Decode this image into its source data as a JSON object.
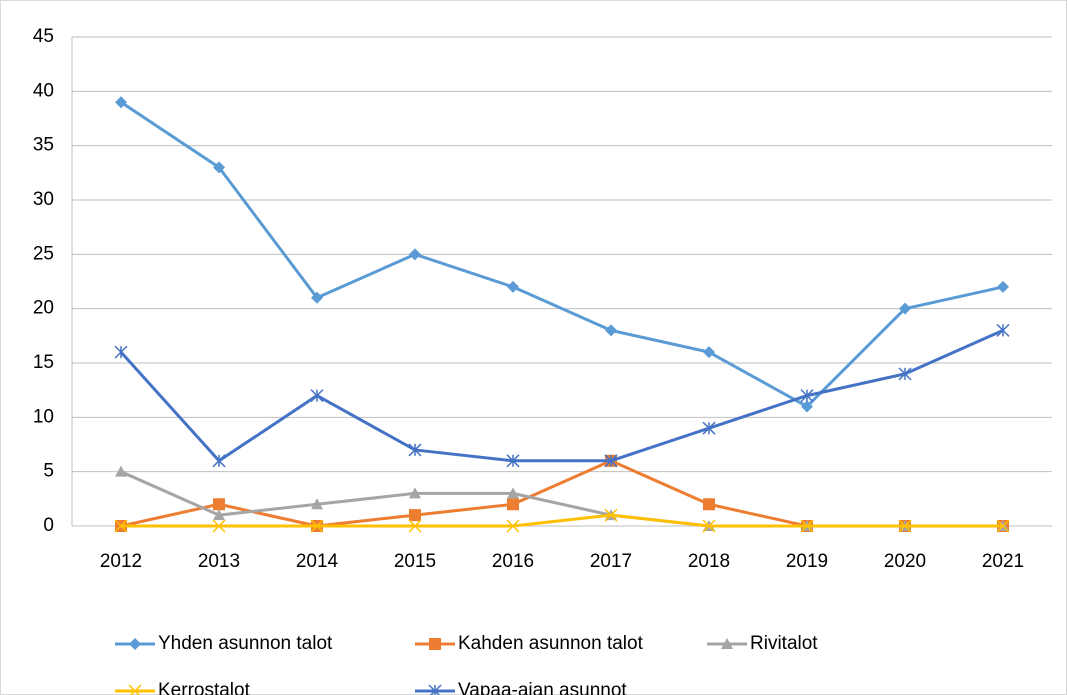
{
  "chart_data": {
    "type": "line",
    "categories": [
      "2012",
      "2013",
      "2014",
      "2015",
      "2016",
      "2017",
      "2018",
      "2019",
      "2020",
      "2021"
    ],
    "series": [
      {
        "name": "Yhden asunnon talot",
        "color": "#5b9bd5",
        "marker": "diamond",
        "values": [
          39,
          33,
          21,
          25,
          22,
          18,
          16,
          11,
          20,
          22
        ]
      },
      {
        "name": "Kahden asunnon talot",
        "color": "#ed7d31",
        "marker": "square",
        "values": [
          0,
          2,
          0,
          1,
          2,
          6,
          2,
          0,
          0,
          0
        ]
      },
      {
        "name": "Rivitalot",
        "color": "#a5a5a5",
        "marker": "triangle",
        "values": [
          5,
          1,
          2,
          3,
          3,
          1,
          0,
          0,
          0,
          0
        ]
      },
      {
        "name": "Kerrostalot",
        "color": "#ffc000",
        "marker": "x",
        "values": [
          0,
          0,
          0,
          0,
          0,
          1,
          0,
          0,
          0,
          0
        ]
      },
      {
        "name": "Vapaa-ajan asunnot",
        "color": "#4472c4",
        "marker": "star",
        "values": [
          16,
          6,
          12,
          7,
          6,
          6,
          9,
          12,
          14,
          18
        ]
      }
    ],
    "ylim": [
      0,
      45
    ],
    "yticks": [
      0,
      5,
      10,
      15,
      20,
      25,
      30,
      35,
      40,
      45
    ],
    "grid": true,
    "legend": "bottom"
  }
}
